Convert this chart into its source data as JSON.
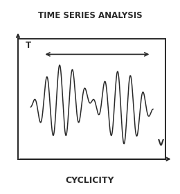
{
  "title": "TIME SERIES ANALYSIS",
  "subtitle": "CYCLICITY",
  "axis_label_t": "T",
  "axis_label_v": "V",
  "background_color": "#ffffff",
  "line_color": "#2a2a2a",
  "box_color": "#2a2a2a",
  "title_fontsize": 8.5,
  "subtitle_fontsize": 9.0,
  "axis_label_fontsize": 8.5,
  "figsize": [
    2.6,
    2.8
  ],
  "dpi": 100
}
